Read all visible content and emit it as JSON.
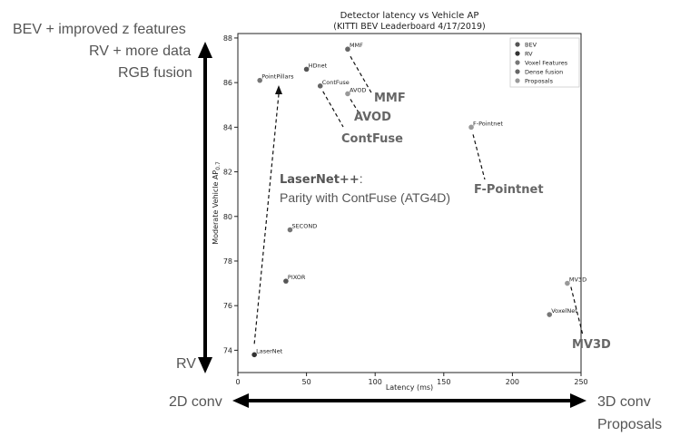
{
  "side_labels": {
    "top_1": "BEV + improved z features",
    "top_2": "RV + more data",
    "top_3": "RGB fusion",
    "bottom": "RV",
    "left_x": "2D conv",
    "right_x_1": "3D conv",
    "right_x_2": "Proposals"
  },
  "callouts": {
    "mmf": "MMF",
    "avod": "AVOD",
    "contfuse": "ContFuse",
    "fpointnet": "F-Pointnet",
    "mv3d": "MV3D",
    "laser_title": "LaserNet++",
    "laser_colon": ":",
    "laser_sub": "Parity with ContFuse (ATG4D)"
  },
  "colors": {
    "BEV": "#555555",
    "RV": "#333333",
    "Voxel Features": "#777777",
    "Dense fusion": "#666666",
    "Proposals": "#999999",
    "axis_arrow": "#000000"
  },
  "chart_data": {
    "type": "scatter",
    "title": "Detector latency vs Vehicle AP",
    "subtitle": "(KITTI BEV Leaderboard 4/17/2019)",
    "xlabel": "Latency (ms)",
    "ylabel": "Moderate Vehicle AP0.7",
    "ylabel_main": "Moderate Vehicle AP",
    "ylabel_sub": "0.7",
    "xlim": [
      0,
      250
    ],
    "ylim": [
      73,
      88.2
    ],
    "xticks": [
      0,
      50,
      100,
      150,
      200,
      250
    ],
    "yticks": [
      74,
      76,
      78,
      80,
      82,
      84,
      86,
      88
    ],
    "legend_position": "top-right",
    "legend": [
      "BEV",
      "RV",
      "Voxel Features",
      "Dense fusion",
      "Proposals"
    ],
    "points": [
      {
        "label": "MMF",
        "x": 80,
        "y": 87.5,
        "series": "Dense fusion"
      },
      {
        "label": "HDnet",
        "x": 50,
        "y": 86.6,
        "series": "BEV"
      },
      {
        "label": "PointPillars",
        "x": 16,
        "y": 86.1,
        "series": "Voxel Features"
      },
      {
        "label": "ContFuse",
        "x": 60,
        "y": 85.85,
        "series": "Dense fusion"
      },
      {
        "label": "AVOD",
        "x": 80,
        "y": 85.5,
        "series": "Proposals"
      },
      {
        "label": "F-Pointnet",
        "x": 170,
        "y": 84.0,
        "series": "Proposals"
      },
      {
        "label": "SECOND",
        "x": 38,
        "y": 79.4,
        "series": "Voxel Features"
      },
      {
        "label": "PIXOR",
        "x": 35,
        "y": 77.1,
        "series": "BEV"
      },
      {
        "label": "MV3D",
        "x": 240,
        "y": 77.0,
        "series": "Proposals"
      },
      {
        "label": "VoxelNet",
        "x": 227,
        "y": 75.6,
        "series": "Voxel Features"
      },
      {
        "label": "LaserNet",
        "x": 12,
        "y": 73.8,
        "series": "RV"
      }
    ]
  }
}
